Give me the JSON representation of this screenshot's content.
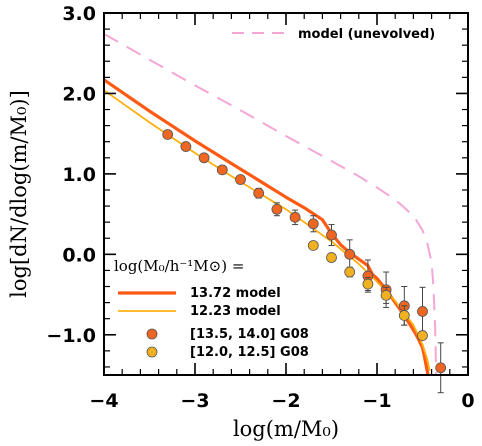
{
  "chart_data": {
    "type": "line",
    "xlabel": "log(m/M₀)",
    "ylabel": "log[dN/dlog(m/M₀)]",
    "xlim": [
      -4,
      0
    ],
    "ylim": [
      -1.5,
      3.0
    ],
    "xticks": [
      -4,
      -3,
      -2,
      -1,
      0
    ],
    "xtick_labels": [
      "−4",
      "−3",
      "−2",
      "−1",
      "0"
    ],
    "yticks": [
      -1.0,
      0.0,
      1.0,
      2.0,
      3.0
    ],
    "ytick_labels": [
      "−1.0",
      "0.0",
      "1.0",
      "2.0",
      "3.0"
    ],
    "legend_title": "log(M₀/h⁻¹M⊙) =",
    "lines": [
      {
        "name": "model (unevolved)",
        "color": "#f4a6d6",
        "dash": true,
        "x": [
          -4.0,
          -3.5,
          -3.0,
          -2.5,
          -2.0,
          -1.5,
          -1.2,
          -1.0,
          -0.8,
          -0.6,
          -0.5,
          -0.45,
          -0.4,
          -0.38,
          -0.36,
          -0.35
        ],
        "y": [
          2.74,
          2.42,
          2.1,
          1.79,
          1.47,
          1.16,
          0.97,
          0.83,
          0.68,
          0.48,
          0.3,
          0.15,
          -0.1,
          -0.4,
          -0.9,
          -1.5
        ]
      },
      {
        "name": "13.72 model",
        "color": "#ff5a14",
        "dash": false,
        "x": [
          -4.0,
          -3.5,
          -3.0,
          -2.5,
          -2.0,
          -1.8,
          -1.6,
          -1.5,
          -1.4,
          -1.3,
          -1.2,
          -1.1,
          -1.05,
          -1.0,
          -0.9,
          -0.8,
          -0.7,
          -0.6,
          -0.55,
          -0.5,
          -0.48,
          -0.46,
          -0.44
        ],
        "y": [
          2.17,
          1.78,
          1.41,
          1.06,
          0.71,
          0.58,
          0.43,
          0.26,
          0.12,
          0.02,
          -0.06,
          -0.14,
          -0.25,
          -0.3,
          -0.44,
          -0.6,
          -0.76,
          -0.94,
          -1.04,
          -1.16,
          -1.26,
          -1.38,
          -1.5
        ]
      },
      {
        "name": "12.23 model",
        "color": "#ffb010",
        "dash": false,
        "x": [
          -4.0,
          -3.5,
          -3.0,
          -2.5,
          -2.0,
          -1.5,
          -1.2,
          -1.0,
          -0.8,
          -0.6,
          -0.5,
          -0.45,
          -0.42
        ],
        "y": [
          2.04,
          1.64,
          1.26,
          0.9,
          0.56,
          0.16,
          -0.12,
          -0.34,
          -0.58,
          -0.88,
          -1.12,
          -1.3,
          -1.45
        ]
      }
    ],
    "scatter": [
      {
        "name": "[13.5, 14.0] G08",
        "color": "#ee6622",
        "x": [
          -3.3,
          -3.1,
          -2.9,
          -2.7,
          -2.5,
          -2.3,
          -2.1,
          -1.9,
          -1.7,
          -1.5,
          -1.3,
          -1.1,
          -0.9,
          -0.7,
          -0.5,
          -0.3
        ],
        "y": [
          1.49,
          1.34,
          1.2,
          1.05,
          0.93,
          0.76,
          0.56,
          0.46,
          0.38,
          0.24,
          0.0,
          -0.27,
          -0.44,
          -0.64,
          -0.71,
          -1.41
        ],
        "yerr": [
          0.04,
          0.04,
          0.04,
          0.05,
          0.05,
          0.06,
          0.08,
          0.09,
          0.1,
          0.13,
          0.18,
          0.2,
          0.22,
          0.24,
          0.3,
          0.31
        ]
      },
      {
        "name": "[12.0, 12.5] G08",
        "color": "#f0b020",
        "x": [
          -1.7,
          -1.5,
          -1.3,
          -1.1,
          -0.9,
          -0.7,
          -0.5
        ],
        "y": [
          0.11,
          -0.04,
          -0.22,
          -0.37,
          -0.51,
          -0.76,
          -1.01
        ],
        "yerr": [
          0.03,
          0.04,
          0.06,
          0.08,
          0.1,
          0.12,
          0.05
        ]
      }
    ],
    "legend": {
      "unevolved_label": "model (unevolved)",
      "entries": [
        {
          "kind": "line",
          "series": "13.72 model",
          "color": "#ff5a14",
          "label": "13.72 model"
        },
        {
          "kind": "line",
          "series": "12.23 model",
          "color": "#ffb010",
          "label": "12.23 model"
        },
        {
          "kind": "point",
          "series": "[13.5, 14.0] G08",
          "color": "#ee6622",
          "label": "[13.5, 14.0] G08"
        },
        {
          "kind": "point",
          "series": "[12.0, 12.5] G08",
          "color": "#f0b020",
          "label": "[12.0, 12.5] G08"
        }
      ]
    }
  }
}
